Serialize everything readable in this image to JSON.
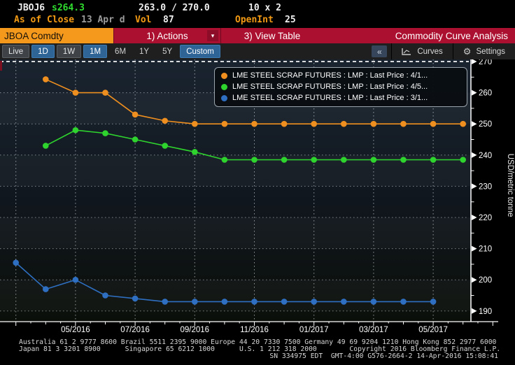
{
  "header": {
    "ticker": "JBOJ6",
    "last_price": "s264.3",
    "bid_ask": "263.0 / 270.0",
    "lot_size": "10 x 2",
    "as_of_label": "As of Close",
    "as_of_date": "13 Apr d",
    "vol_label": "Vol",
    "vol_value": "87",
    "open_int_label": "OpenInt",
    "open_int_value": "25"
  },
  "toolbar": {
    "security_tab": "JBOA Comdty",
    "actions_button": "1) Actions",
    "actions_caret": "▾",
    "view_table_button": "3) View Table",
    "function_title": "Commodity Curve Analysis"
  },
  "tabbar": {
    "ranges": [
      {
        "label": "Live",
        "style": "framed"
      },
      {
        "label": "1D",
        "style": "active"
      },
      {
        "label": "1W",
        "style": "framed"
      },
      {
        "label": "1M",
        "style": "active"
      },
      {
        "label": "6M",
        "style": "plain"
      },
      {
        "label": "1Y",
        "style": "plain"
      },
      {
        "label": "5Y",
        "style": "plain"
      },
      {
        "label": "Custom",
        "style": "active"
      }
    ],
    "collapse_button": "«",
    "curves_button": "Curves",
    "settings_button": "Settings",
    "settings_gear": "⚙"
  },
  "chart_data": {
    "type": "line",
    "title": "Commodity Curve Analysis",
    "ylabel": "USD/metric tonne",
    "ylim": [
      186,
      271
    ],
    "yticks": [
      270,
      260,
      250,
      240,
      230,
      220,
      210,
      200,
      190
    ],
    "marker_line": 270,
    "grid": true,
    "legend_position": "top-right",
    "x_categories": [
      "03/2016",
      "04/2016",
      "05/2016",
      "06/2016",
      "07/2016",
      "08/2016",
      "09/2016",
      "10/2016",
      "11/2016",
      "12/2016",
      "01/2017",
      "02/2017",
      "03/2017",
      "04/2017",
      "05/2017",
      "06/2017"
    ],
    "x_tick_labels": [
      "05/2016",
      "07/2016",
      "09/2016",
      "11/2016",
      "01/2017",
      "03/2017",
      "05/2017"
    ],
    "series": [
      {
        "name": "LME STEEL SCRAP FUTURES : LMP : Last Price : 4/1...",
        "color": "#ef8f1f",
        "start_index": 1,
        "values": [
          264.3,
          260,
          260,
          253,
          251,
          250,
          250,
          250,
          250,
          250,
          250,
          250,
          250,
          250,
          250
        ]
      },
      {
        "name": "LME STEEL SCRAP FUTURES : LMP : Last Price : 4/5...",
        "color": "#2ed32e",
        "start_index": 1,
        "values": [
          243,
          248,
          247,
          245,
          243,
          241,
          238.5,
          238.5,
          238.5,
          238.5,
          238.5,
          238.5,
          238.5,
          238.5,
          238.5
        ]
      },
      {
        "name": "LME STEEL SCRAP FUTURES : LMP : Last Price : 3/1...",
        "color": "#2e6fc2",
        "start_index": 0,
        "values": [
          205.5,
          197,
          200,
          195,
          194,
          193,
          193,
          193,
          193,
          193,
          193,
          193,
          193,
          193,
          193
        ]
      }
    ]
  },
  "colors": {
    "toolbar_red": "#ac1030",
    "security_tab_orange": "#f5991d",
    "active_tab_blue": "#2f6496",
    "quote_green": "#2fdc2f",
    "label_orange": "#f29a14"
  },
  "footer": {
    "line1": "Australia 61 2 9777 8600 Brazil 5511 2395 9000 Europe 44 20 7330 7500 Germany 49 69 9204 1210 Hong Kong 852 2977 6000",
    "line2": "Japan 81 3 3201 8900      Singapore 65 6212 1000      U.S. 1 212 318 2000        Copyright 2016 Bloomberg Finance L.P.",
    "line3": "SN 334975 EDT  GMT-4:00 G576-2664-2 14-Apr-2016 15:08:41"
  }
}
